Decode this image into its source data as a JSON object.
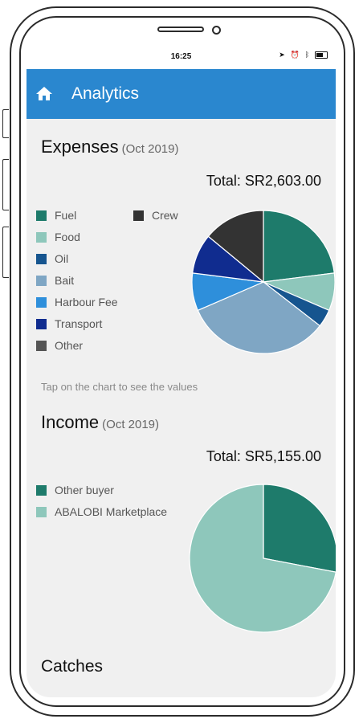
{
  "status": {
    "time": "16:25",
    "icons": [
      "location-icon",
      "alarm-icon",
      "bluetooth-icon",
      "battery-icon"
    ]
  },
  "app_bar": {
    "title": "Analytics",
    "icon": "home-icon",
    "color": "#2a87cf"
  },
  "expenses": {
    "title": "Expenses",
    "period": "(Oct 2019)",
    "total": "Total: SR2,603.00",
    "hint": "Tap on the chart to see the values",
    "legend": [
      {
        "label": "Fuel",
        "color": "#1e7b6b"
      },
      {
        "label": "Crew",
        "color": "#333333"
      },
      {
        "label": "Food",
        "color": "#8ec7bb"
      },
      {
        "label": "Oil",
        "color": "#16558f"
      },
      {
        "label": "Bait",
        "color": "#7fa6c4"
      },
      {
        "label": "Harbour Fee",
        "color": "#2e8fdb"
      },
      {
        "label": "Transport",
        "color": "#102c8f"
      },
      {
        "label": "Other",
        "color": "#555555"
      }
    ]
  },
  "income": {
    "title": "Income",
    "period": "(Oct 2019)",
    "total": "Total: SR5,155.00",
    "legend": [
      {
        "label": "Other buyer",
        "color": "#1e7b6b"
      },
      {
        "label": "ABALOBI Marketplace",
        "color": "#8ec7bb"
      }
    ]
  },
  "catches": {
    "title": "Catches"
  },
  "chart_data": [
    {
      "type": "pie",
      "title": "Expenses",
      "categories": [
        "Fuel",
        "Food",
        "Oil",
        "Bait",
        "Harbour Fee",
        "Transport",
        "Other",
        "Crew"
      ],
      "values": [
        23,
        8.5,
        4,
        33,
        8.5,
        9,
        0,
        14
      ],
      "colors": [
        "#1e7b6b",
        "#8ec7bb",
        "#16558f",
        "#7fa6c4",
        "#2e8fdb",
        "#102c8f",
        "#555555",
        "#333333"
      ],
      "legend": "left"
    },
    {
      "type": "pie",
      "title": "Income",
      "categories": [
        "Other buyer",
        "ABALOBI Marketplace"
      ],
      "values": [
        28,
        72
      ],
      "colors": [
        "#1e7b6b",
        "#8ec7bb"
      ],
      "legend": "left"
    }
  ]
}
